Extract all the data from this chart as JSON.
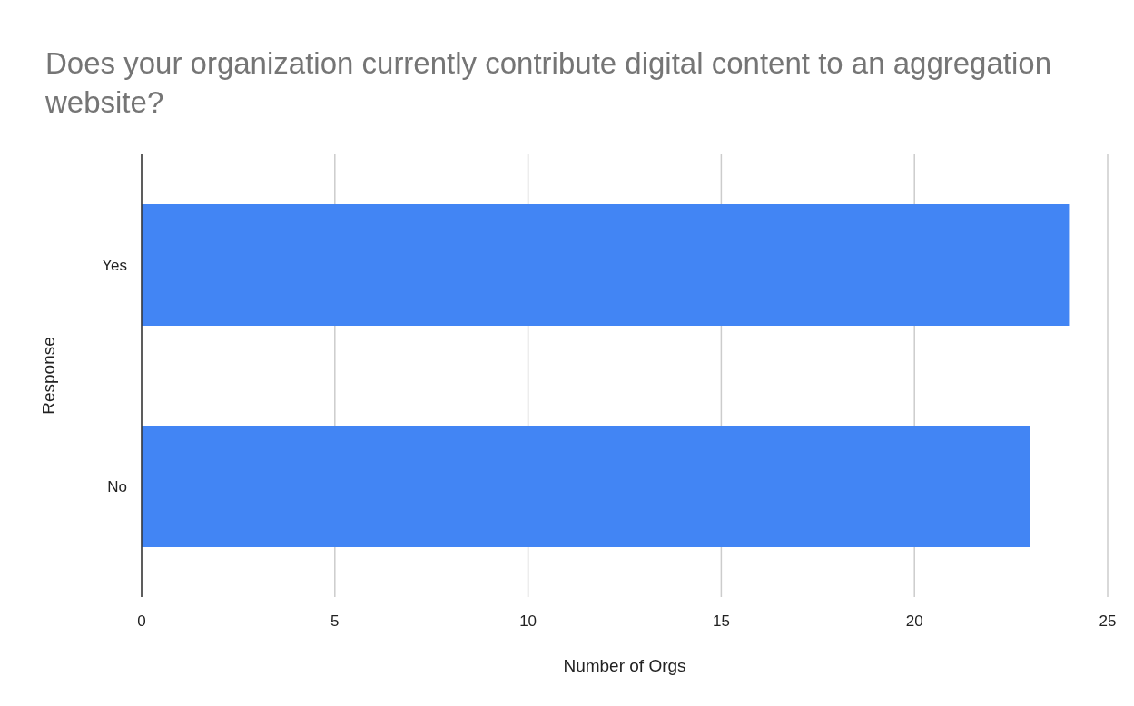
{
  "chart_data": {
    "type": "bar",
    "orientation": "horizontal",
    "title": "Does your organization currently contribute digital content to an aggregation website?",
    "xlabel": "Number of Orgs",
    "ylabel": "Response",
    "categories": [
      "Yes",
      "No"
    ],
    "values": [
      24,
      23
    ],
    "color": "#4285f4",
    "xlim": [
      0,
      25
    ],
    "xticks": [
      0,
      5,
      10,
      15,
      20,
      25
    ],
    "grid": "x"
  }
}
